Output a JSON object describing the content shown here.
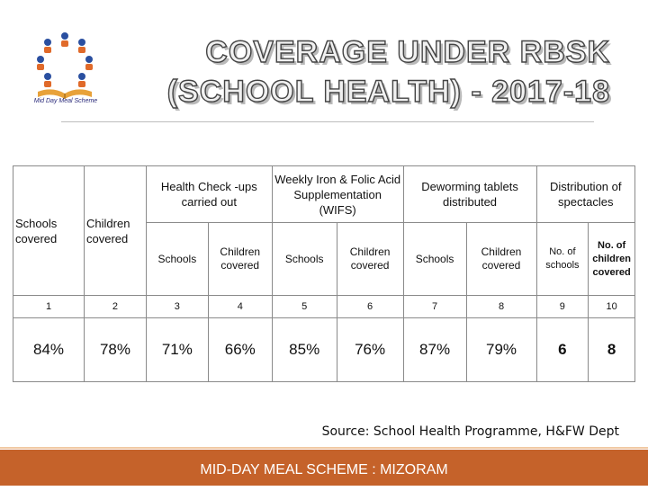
{
  "logo": {
    "caption": "Mid Day Meal Scheme"
  },
  "title": {
    "line1": "COVERAGE UNDER RBSK",
    "line2": "(SCHOOL HEALTH) - 2017-18"
  },
  "table": {
    "group_headers": {
      "schools_covered": "Schools covered",
      "children_covered": "Children covered",
      "health_check": "Health Check -ups carried out",
      "wifs": "Weekly Iron & Folic Acid Supplementation (WIFS)",
      "deworming": "Deworming tablets distributed",
      "spectacles": "Distribution of spectacles"
    },
    "sub_headers": {
      "health_schools": "Schools",
      "health_children": "Children covered",
      "wifs_schools": "Schools",
      "wifs_children": "Children covered",
      "deworm_schools": "Schools",
      "deworm_children": "Children covered",
      "spec_schools": "No. of schools",
      "spec_children": "No. of children covered"
    },
    "index_row": [
      "1",
      "2",
      "3",
      "4",
      "5",
      "6",
      "7",
      "8",
      "9",
      "10"
    ],
    "values_row": [
      "84%",
      "78%",
      "71%",
      "66%",
      "85%",
      "76%",
      "87%",
      "79%",
      "6",
      "8"
    ]
  },
  "source": "Source: School Health Programme, H&FW Dept",
  "footer": "MID-DAY MEAL SCHEME : MIZORAM"
}
